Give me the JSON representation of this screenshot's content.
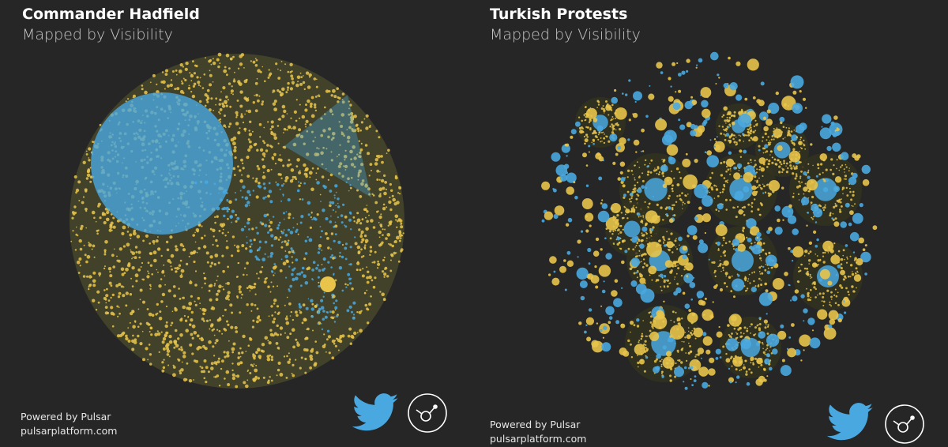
{
  "panels": [
    {
      "title": "Commander Hadfield",
      "subtitle": "Mapped by Visibility",
      "footer": [
        "Powered by Pulsar",
        "pulsarplatform.com"
      ]
    },
    {
      "title": "Turkish Protests",
      "subtitle": "Mapped by Visibility",
      "footer": [
        "Powered by Pulsar",
        "pulsarplatform.com"
      ]
    }
  ]
}
